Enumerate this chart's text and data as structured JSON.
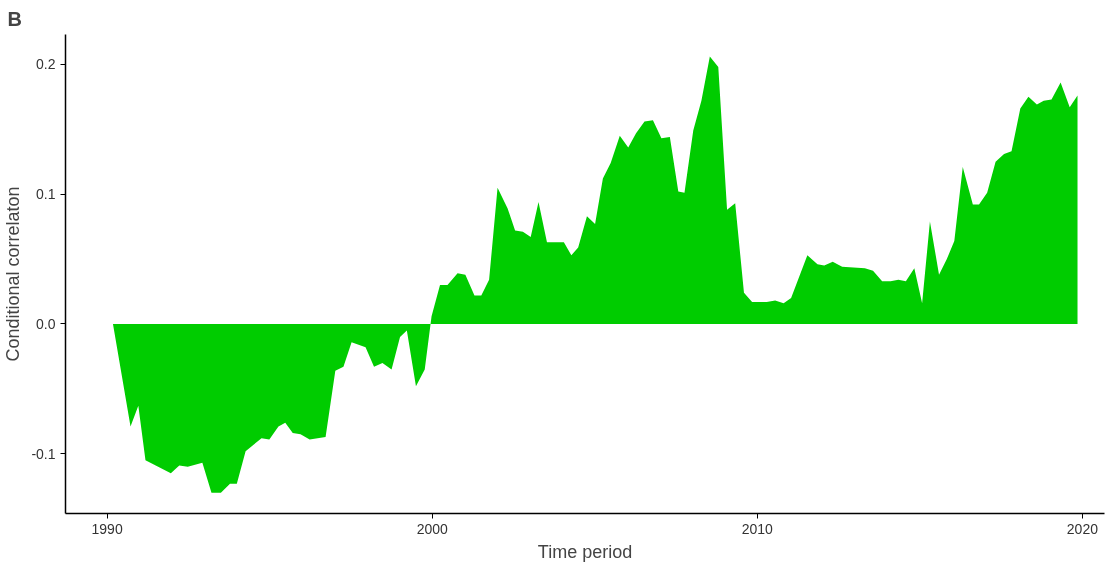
{
  "chart_data": {
    "type": "area",
    "title": "B",
    "xlabel": "Time period",
    "ylabel": "Conditional correlaton",
    "x": [
      1990.18,
      1990.72,
      1990.96,
      1991.18,
      1991.96,
      1992.22,
      1992.48,
      1992.93,
      1993.21,
      1993.5,
      1993.78,
      1993.99,
      1994.26,
      1994.75,
      1994.99,
      1995.27,
      1995.48,
      1995.71,
      1995.95,
      1996.23,
      1996.72,
      1997.02,
      1997.27,
      1997.52,
      1997.95,
      1998.21,
      1998.47,
      1998.75,
      1999.01,
      1999.22,
      1999.5,
      1999.77,
      1999.98,
      2000.24,
      2000.47,
      2000.78,
      2001.02,
      2001.3,
      2001.51,
      2001.75,
      2002.01,
      2002.32,
      2002.55,
      2002.79,
      2003.03,
      2003.27,
      2003.53,
      2004.05,
      2004.28,
      2004.49,
      2004.76,
      2005.01,
      2005.25,
      2005.49,
      2005.77,
      2006.03,
      2006.27,
      2006.53,
      2006.79,
      2007.05,
      2007.31,
      2007.57,
      2007.76,
      2008.03,
      2008.28,
      2008.54,
      2008.8,
      2009.07,
      2009.32,
      2009.59,
      2009.84,
      2010.29,
      2010.55,
      2010.81,
      2011.04,
      2011.54,
      2011.85,
      2012.06,
      2012.32,
      2012.61,
      2013.31,
      2013.56,
      2013.84,
      2014.1,
      2014.34,
      2014.57,
      2014.83,
      2015.07,
      2015.31,
      2015.59,
      2015.83,
      2016.06,
      2016.32,
      2016.63,
      2016.82,
      2017.07,
      2017.33,
      2017.59,
      2017.82,
      2018.09,
      2018.34,
      2018.6,
      2018.81,
      2019.05,
      2019.33,
      2019.61,
      2019.85
    ],
    "series": [
      {
        "color": "#00cc00",
        "values": [
          0.0,
          -0.079,
          -0.063,
          -0.105,
          -0.115,
          -0.109,
          -0.11,
          -0.107,
          -0.13,
          -0.13,
          -0.123,
          -0.123,
          -0.098,
          -0.088,
          -0.089,
          -0.079,
          -0.076,
          -0.084,
          -0.085,
          -0.089,
          -0.087,
          -0.036,
          -0.033,
          -0.014,
          -0.018,
          -0.033,
          -0.03,
          -0.035,
          -0.01,
          -0.005,
          -0.048,
          -0.035,
          0.006,
          0.03,
          0.03,
          0.039,
          0.038,
          0.022,
          0.022,
          0.034,
          0.105,
          0.089,
          0.072,
          0.071,
          0.067,
          0.094,
          0.063,
          0.063,
          0.053,
          0.059,
          0.083,
          0.077,
          0.112,
          0.124,
          0.145,
          0.136,
          0.147,
          0.156,
          0.157,
          0.143,
          0.144,
          0.102,
          0.101,
          0.149,
          0.172,
          0.206,
          0.198,
          0.088,
          0.093,
          0.024,
          0.017,
          0.017,
          0.018,
          0.016,
          0.02,
          0.053,
          0.046,
          0.045,
          0.048,
          0.044,
          0.043,
          0.041,
          0.033,
          0.033,
          0.034,
          0.033,
          0.043,
          0.016,
          0.079,
          0.038,
          0.05,
          0.064,
          0.121,
          0.092,
          0.092,
          0.101,
          0.125,
          0.131,
          0.133,
          0.166,
          0.175,
          0.169,
          0.172,
          0.173,
          0.186,
          0.167,
          0.176
        ]
      }
    ],
    "xlim": [
      1988.72,
      2020.68
    ],
    "ylim": [
      -0.146,
      0.223
    ],
    "xticks": [
      1990,
      2000,
      2010,
      2020
    ],
    "yticks": [
      {
        "value": -0.1,
        "label": "-0.1"
      },
      {
        "value": 0,
        "label": "0.0"
      },
      {
        "value": 0.1,
        "label": "0.1"
      },
      {
        "value": 0.2,
        "label": "0.2"
      }
    ],
    "grid": false
  }
}
